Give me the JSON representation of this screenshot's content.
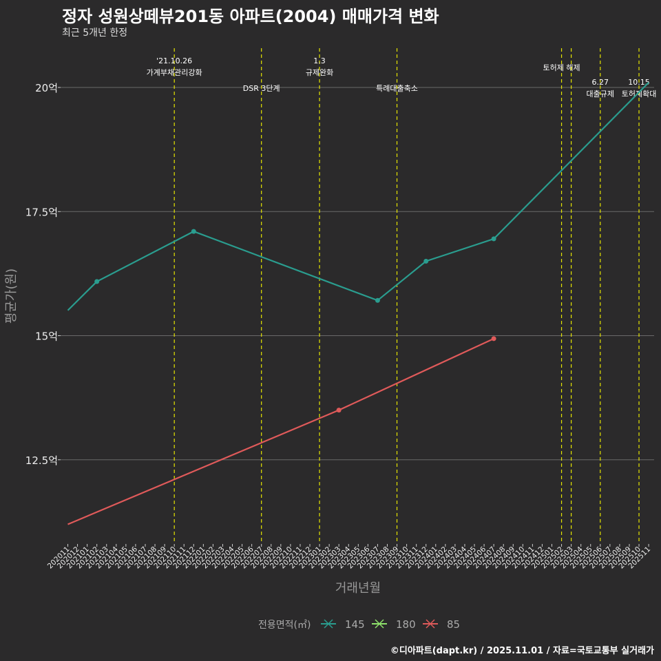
{
  "title": "정자 성원상떼뷰201동 아파트(2004) 매매가격 변화",
  "subtitle": "최근 5개년 한정",
  "caption": "©디아파트(dapt.kr) / 2025.11.01 / 자료=국토교통부 실거래가",
  "chart_data": {
    "type": "line",
    "xlabel": "거래년월",
    "ylabel": "평균가(원)",
    "x": [
      "202011",
      "202012",
      "202101",
      "202102",
      "202103",
      "202104",
      "202105",
      "202106",
      "202107",
      "202108",
      "202109",
      "202110",
      "202111",
      "202112",
      "202201",
      "202202",
      "202203",
      "202204",
      "202205",
      "202206",
      "202207",
      "202208",
      "202209",
      "202210",
      "202211",
      "202212",
      "202301",
      "202302",
      "202303",
      "202304",
      "202305",
      "202306",
      "202307",
      "202308",
      "202309",
      "202310",
      "202311",
      "202312",
      "202401",
      "202402",
      "202403",
      "202404",
      "202405",
      "202406",
      "202407",
      "202408",
      "202409",
      "202410",
      "202411",
      "202412",
      "202501",
      "202502",
      "202503",
      "202504",
      "202505",
      "202506",
      "202507",
      "202508",
      "202509",
      "202510",
      "202511"
    ],
    "yticks": [
      {
        "v": 12.5,
        "label": "12.5억"
      },
      {
        "v": 15,
        "label": "15억"
      },
      {
        "v": 17.5,
        "label": "17.5억"
      },
      {
        "v": 20,
        "label": "20억"
      }
    ],
    "ylim": [
      10.9,
      20.9
    ],
    "grid": true,
    "legend": {
      "title": "전용면적(㎡)",
      "position": "bottom"
    },
    "series": [
      {
        "name": "145",
        "color": "#2a9d8f",
        "points": [
          [
            "202011",
            15.51
          ],
          [
            "202102",
            16.09
          ],
          [
            "202112",
            17.1
          ],
          [
            "202307",
            15.71
          ],
          [
            "202312",
            16.5
          ],
          [
            "202407",
            16.95
          ],
          [
            "202511",
            20.1
          ]
        ]
      },
      {
        "name": "180",
        "color": "#8fe36b",
        "points": []
      },
      {
        "name": "85",
        "color": "#e05a5a",
        "points": [
          [
            "202011",
            11.2
          ],
          [
            "202303",
            13.5
          ],
          [
            "202407",
            14.94
          ]
        ]
      }
    ],
    "events": [
      {
        "x": "202110",
        "lines": [
          "'21.10.26",
          "가계부채관리강화"
        ],
        "level": "top"
      },
      {
        "x": "202207",
        "lines": [
          "DSR 3단계"
        ],
        "level": "low"
      },
      {
        "x": "202301",
        "lines": [
          "1.3",
          "규제완화"
        ],
        "level": "top"
      },
      {
        "x": "202309",
        "lines": [
          "특례대출축소"
        ],
        "level": "low"
      },
      {
        "x": "202502",
        "lines": [
          "토허제 해제"
        ],
        "level": "mid"
      },
      {
        "x": "202503",
        "lines": [],
        "level": "none"
      },
      {
        "x": "202506",
        "lines": [
          "6.27",
          "대출규제"
        ],
        "level": "low2"
      },
      {
        "x": "202510",
        "lines": [
          "10.15",
          "토허제확대"
        ],
        "level": "low2"
      }
    ]
  }
}
